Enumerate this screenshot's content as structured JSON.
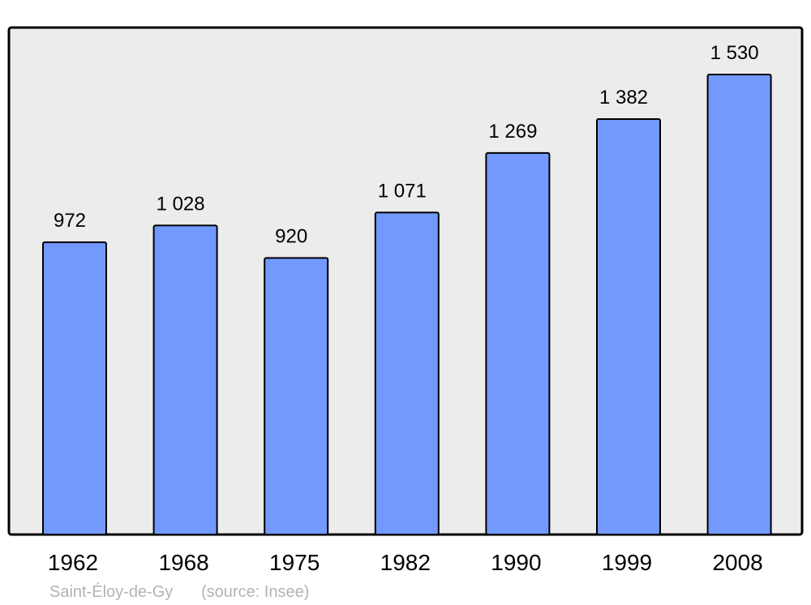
{
  "chart_data": {
    "type": "bar",
    "categories": [
      "1962",
      "1968",
      "1975",
      "1982",
      "1990",
      "1999",
      "2008"
    ],
    "values": [
      972,
      1028,
      920,
      1071,
      1269,
      1382,
      1530
    ],
    "value_labels": [
      "972",
      "1 028",
      "920",
      "1 071",
      "1 269",
      "1 382",
      "1 530"
    ],
    "title": "",
    "xlabel": "",
    "ylabel": "",
    "grid": false,
    "colors": {
      "bar": "#7399ff",
      "background": "#ececec",
      "frame": "#000000"
    }
  },
  "footer": {
    "place": "Saint-Éloy-de-Gy",
    "source": "(source: Insee)"
  }
}
